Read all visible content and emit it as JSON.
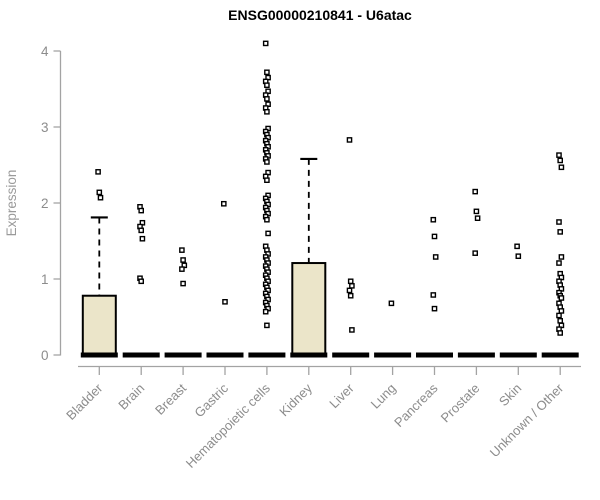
{
  "colors": {
    "box_fill": "#ebe5c9",
    "box_stroke": "#000000",
    "median": "#000000",
    "axis": "#a3a3a3",
    "tick_label": "#8c8c8c",
    "title_color": "#000000",
    "outlier_fill": "#ffffff",
    "background": "#ffffff"
  },
  "chart_data": {
    "type": "boxplot",
    "title": "ENSG00000210841 - U6atac",
    "xlabel": "",
    "ylabel": "Expression",
    "ylim": [
      0,
      4
    ],
    "yticks": [
      0,
      1,
      2,
      3,
      4
    ],
    "grid": false,
    "legend": false,
    "categories": [
      "Bladder",
      "Brain",
      "Breast",
      "Gastric",
      "Hematopoietic cells",
      "Kidney",
      "Liver",
      "Lung",
      "Pancreas",
      "Prostate",
      "Skin",
      "Unknown / Other"
    ],
    "series": [
      {
        "name": "Bladder",
        "q1": 0,
        "median": 0,
        "q3": 0.78,
        "whisker_low": 0,
        "whisker_high": 1.81,
        "outliers": [
          2.41,
          2.14,
          2.07
        ]
      },
      {
        "name": "Brain",
        "q1": 0,
        "median": 0,
        "q3": 0,
        "whisker_low": 0,
        "whisker_high": 0,
        "outliers": [
          1.95,
          1.9,
          1.74,
          1.69,
          1.64,
          1.53,
          1.01,
          0.97
        ]
      },
      {
        "name": "Breast",
        "q1": 0,
        "median": 0,
        "q3": 0,
        "whisker_low": 0,
        "whisker_high": 0,
        "outliers": [
          1.38,
          1.25,
          1.18,
          1.13,
          0.94
        ]
      },
      {
        "name": "Gastric",
        "q1": 0,
        "median": 0,
        "q3": 0,
        "whisker_low": 0,
        "whisker_high": 0,
        "outliers": [
          1.99,
          0.7
        ]
      },
      {
        "name": "Hematopoietic cells",
        "q1": 0,
        "median": 0,
        "q3": 0,
        "whisker_low": 0,
        "whisker_high": 0,
        "outliers": [
          4.1,
          3.72,
          3.65,
          3.6,
          3.55,
          3.47,
          3.42,
          3.37,
          3.3,
          3.25,
          3.2,
          2.98,
          2.94,
          2.9,
          2.86,
          2.82,
          2.78,
          2.74,
          2.7,
          2.66,
          2.62,
          2.58,
          2.54,
          2.4,
          2.35,
          2.3,
          2.1,
          2.06,
          2.02,
          1.98,
          1.94,
          1.9,
          1.86,
          1.82,
          1.78,
          1.6,
          1.43,
          1.38,
          1.33,
          1.29,
          1.25,
          1.21,
          1.17,
          1.13,
          1.09,
          1.05,
          1.01,
          0.97,
          0.93,
          0.89,
          0.85,
          0.81,
          0.77,
          0.73,
          0.69,
          0.65,
          0.61,
          0.57,
          0.39
        ]
      },
      {
        "name": "Kidney",
        "q1": 0,
        "median": 0,
        "q3": 1.21,
        "whisker_low": 0,
        "whisker_high": 2.58,
        "outliers": []
      },
      {
        "name": "Liver",
        "q1": 0,
        "median": 0,
        "q3": 0,
        "whisker_low": 0,
        "whisker_high": 0,
        "outliers": [
          2.83,
          0.97,
          0.91,
          0.85,
          0.78,
          0.33
        ]
      },
      {
        "name": "Lung",
        "q1": 0,
        "median": 0,
        "q3": 0,
        "whisker_low": 0,
        "whisker_high": 0,
        "outliers": [
          0.68
        ]
      },
      {
        "name": "Pancreas",
        "q1": 0,
        "median": 0,
        "q3": 0,
        "whisker_low": 0,
        "whisker_high": 0,
        "outliers": [
          1.78,
          1.56,
          1.29,
          0.79,
          0.61
        ]
      },
      {
        "name": "Prostate",
        "q1": 0,
        "median": 0,
        "q3": 0,
        "whisker_low": 0,
        "whisker_high": 0,
        "outliers": [
          2.15,
          1.89,
          1.8,
          1.34
        ]
      },
      {
        "name": "Skin",
        "q1": 0,
        "median": 0,
        "q3": 0,
        "whisker_low": 0,
        "whisker_high": 0,
        "outliers": [
          1.43,
          1.3
        ]
      },
      {
        "name": "Unknown / Other",
        "q1": 0,
        "median": 0,
        "q3": 0,
        "whisker_low": 0,
        "whisker_high": 0,
        "outliers": [
          2.63,
          2.56,
          2.47,
          1.75,
          1.62,
          1.29,
          1.21,
          1.07,
          1.02,
          0.97,
          0.92,
          0.87,
          0.82,
          0.78,
          0.75,
          0.68,
          0.63,
          0.58,
          0.52,
          0.45,
          0.39,
          0.34,
          0.29
        ]
      }
    ]
  }
}
